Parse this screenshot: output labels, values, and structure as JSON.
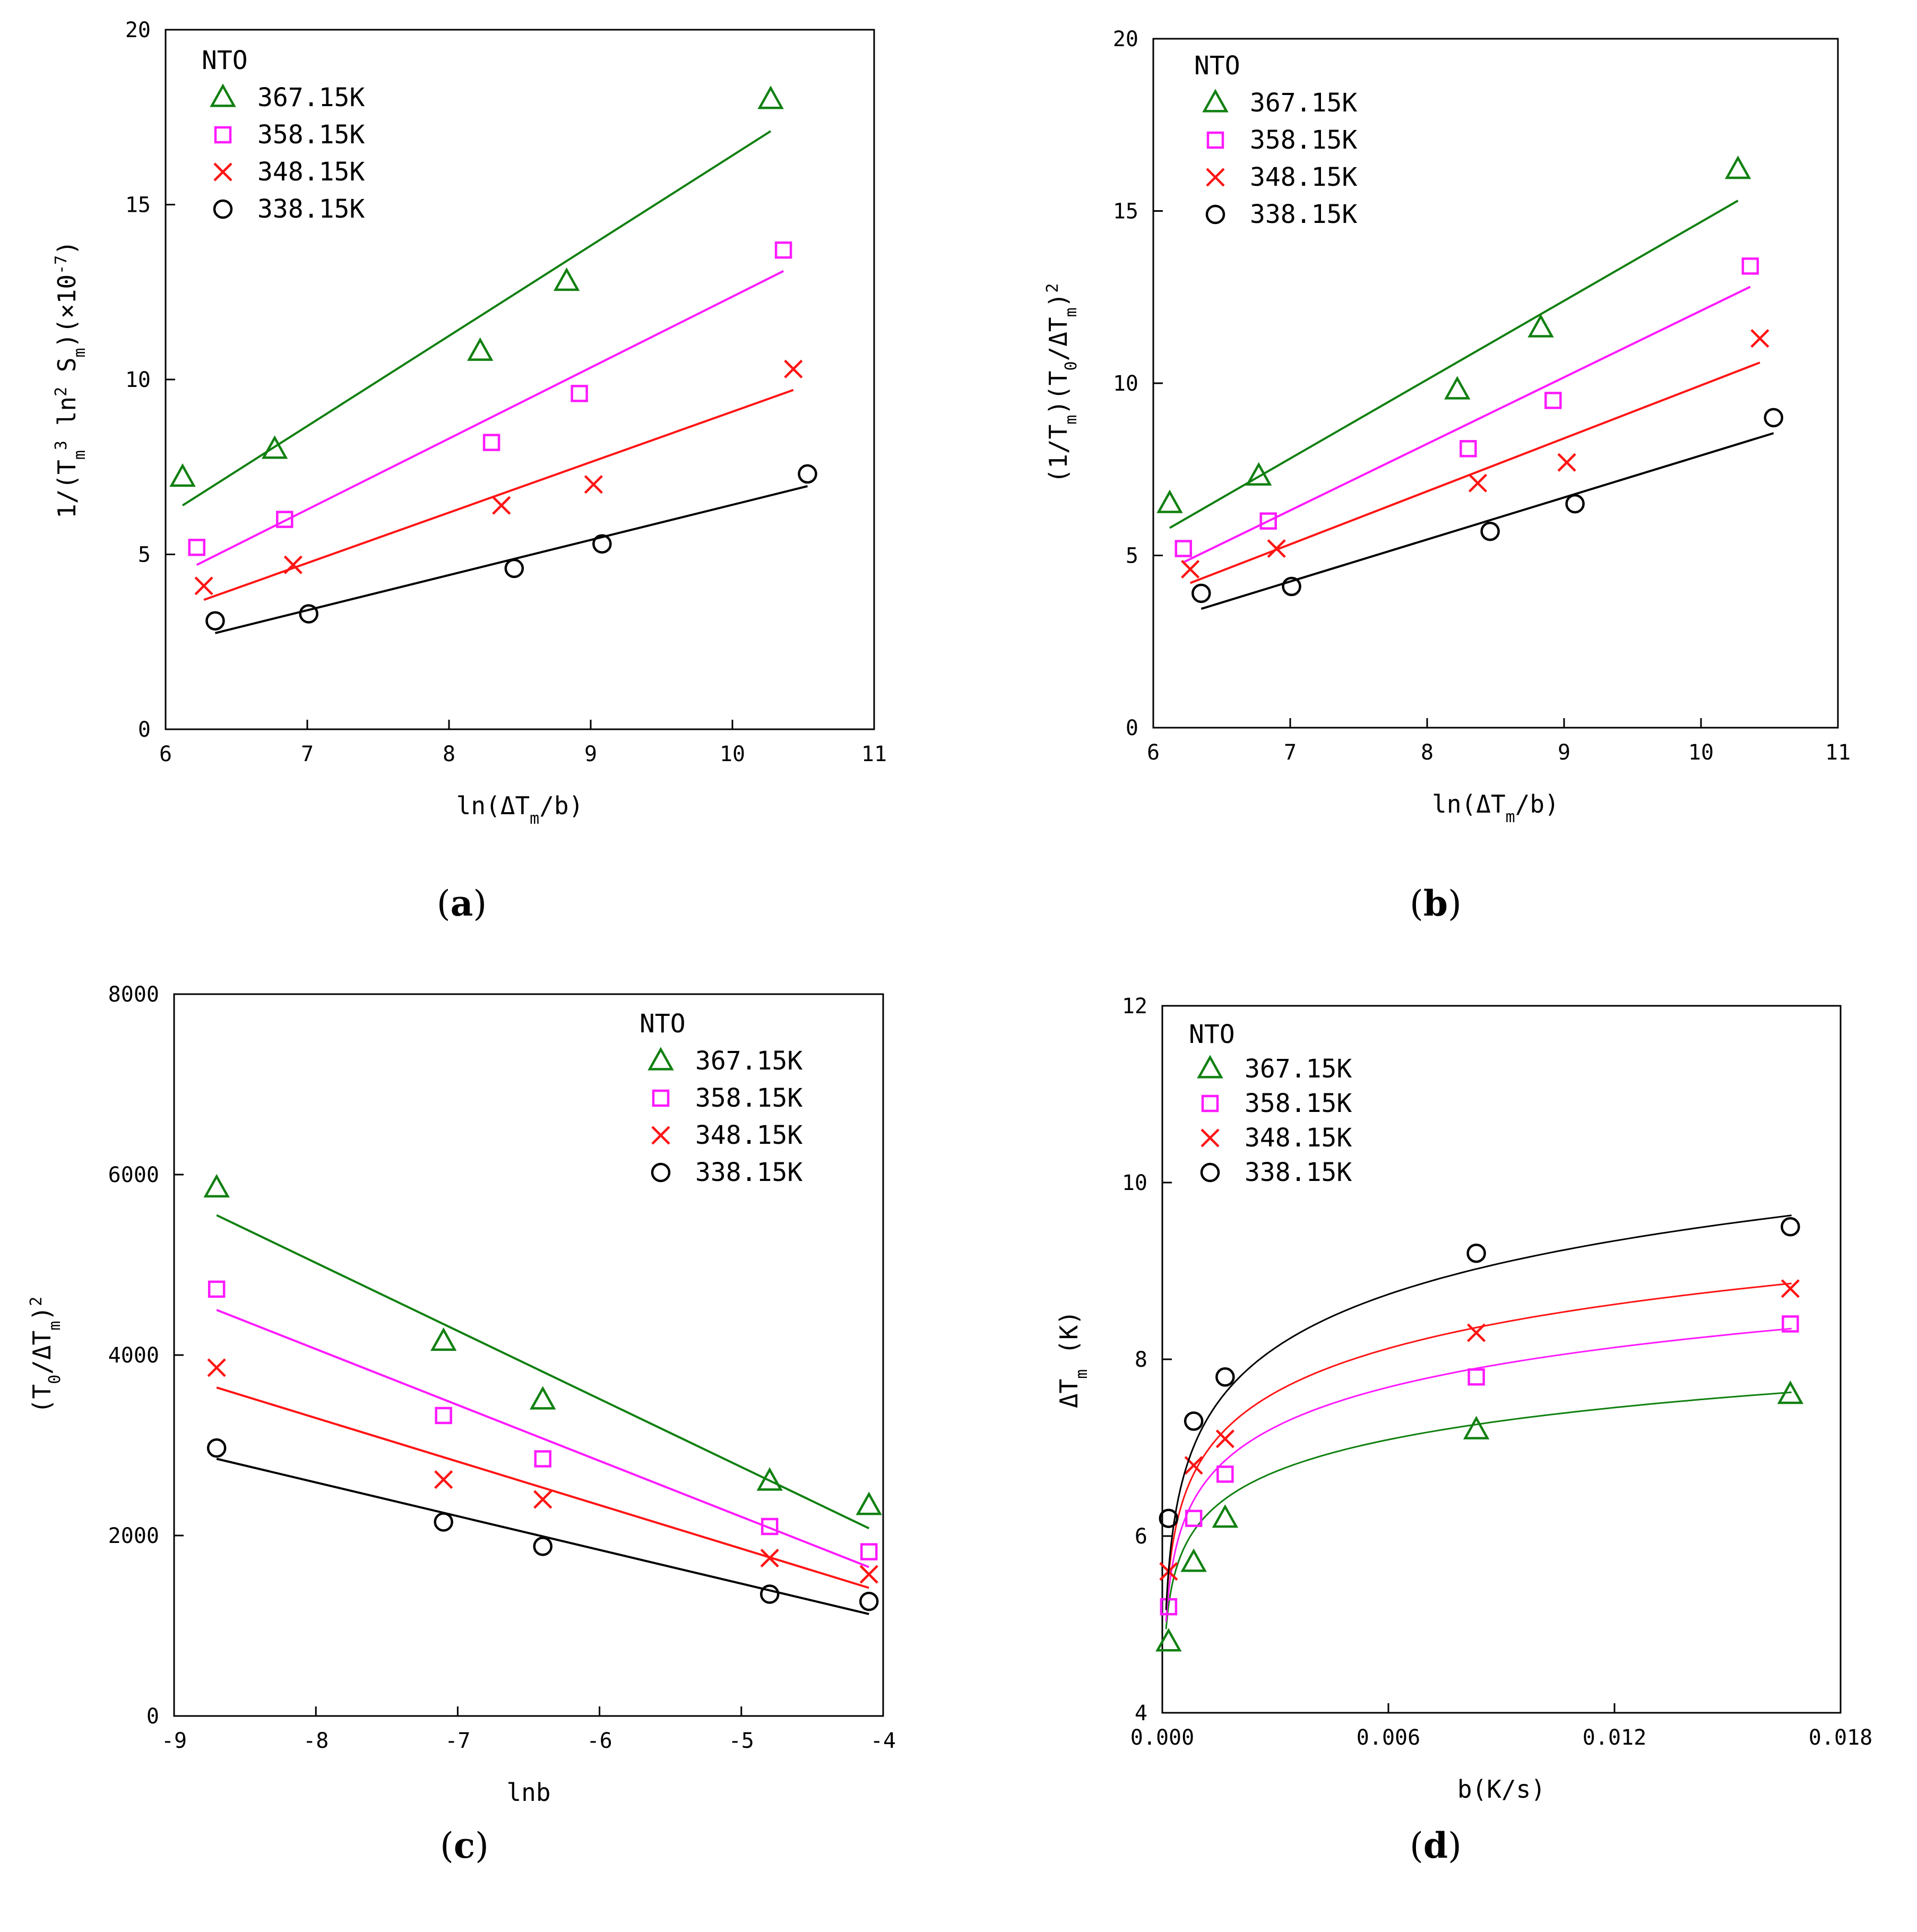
{
  "colors": {
    "367": "#118011",
    "358": "#ff1aff",
    "348": "#ff1414",
    "338": "#000000"
  },
  "chart_data": [
    {
      "id": "a",
      "type": "scatter",
      "caption": "a",
      "xlabel": "ln(ΔT_m/b)",
      "ylabel": "1/(T_m^3 ln^2 S_m)(×10^-7)",
      "xlim": [
        6,
        11
      ],
      "ylim": [
        0,
        20
      ],
      "xticks": [
        6,
        7,
        8,
        9,
        10,
        11
      ],
      "yticks": [
        0,
        5,
        10,
        15,
        20
      ],
      "xticklabels": [
        "6",
        "7",
        "8",
        "9",
        "10",
        "11"
      ],
      "yticklabels": [
        "0",
        "5",
        "10",
        "15",
        "20"
      ],
      "legend_title": "NTO",
      "legend_pos": "top-left",
      "series": [
        {
          "name": "367.15K",
          "marker": "triangle",
          "color_key": "367",
          "x": [
            6.12,
            6.77,
            8.22,
            8.83,
            10.27
          ],
          "y": [
            7.2,
            8.0,
            10.8,
            12.8,
            18.0
          ],
          "fit": {
            "type": "linear",
            "x": [
              6.12,
              10.27
            ],
            "y": [
              6.4,
              17.1
            ]
          }
        },
        {
          "name": "358.15K",
          "marker": "square",
          "color_key": "358",
          "x": [
            6.22,
            6.84,
            8.3,
            8.92,
            10.36
          ],
          "y": [
            5.2,
            6.0,
            8.2,
            9.6,
            13.7
          ],
          "fit": {
            "type": "linear",
            "x": [
              6.22,
              10.36
            ],
            "y": [
              4.7,
              13.1
            ]
          }
        },
        {
          "name": "348.15K",
          "marker": "cross",
          "color_key": "348",
          "x": [
            6.27,
            6.9,
            8.37,
            9.02,
            10.43
          ],
          "y": [
            4.1,
            4.7,
            6.4,
            7.0,
            10.3
          ],
          "fit": {
            "type": "linear",
            "x": [
              6.27,
              10.43
            ],
            "y": [
              3.7,
              9.7
            ]
          }
        },
        {
          "name": "338.15K",
          "marker": "circle",
          "color_key": "338",
          "x": [
            6.35,
            7.01,
            8.46,
            9.08,
            10.53
          ],
          "y": [
            3.1,
            3.3,
            4.6,
            5.3,
            7.3
          ],
          "fit": {
            "type": "linear",
            "x": [
              6.35,
              10.53
            ],
            "y": [
              2.75,
              6.95
            ]
          }
        }
      ]
    },
    {
      "id": "b",
      "type": "scatter",
      "caption": "b",
      "xlabel": "ln(ΔT_m/b)",
      "ylabel": "(1/T_m)(T_0/ΔT_m)^2",
      "xlim": [
        6,
        11
      ],
      "ylim": [
        0,
        20
      ],
      "xticks": [
        6,
        7,
        8,
        9,
        10,
        11
      ],
      "yticks": [
        0,
        5,
        10,
        15,
        20
      ],
      "xticklabels": [
        "6",
        "7",
        "8",
        "9",
        "10",
        "11"
      ],
      "yticklabels": [
        "0",
        "5",
        "10",
        "15",
        "20"
      ],
      "legend_title": "NTO",
      "legend_pos": "top-left",
      "series": [
        {
          "name": "367.15K",
          "marker": "triangle",
          "color_key": "367",
          "x": [
            6.12,
            6.77,
            8.22,
            8.83,
            10.27
          ],
          "y": [
            6.5,
            7.3,
            9.8,
            11.6,
            16.2
          ],
          "fit": {
            "type": "linear",
            "x": [
              6.12,
              10.27
            ],
            "y": [
              5.8,
              15.3
            ]
          }
        },
        {
          "name": "358.15K",
          "marker": "square",
          "color_key": "358",
          "x": [
            6.22,
            6.84,
            8.3,
            8.92,
            10.36
          ],
          "y": [
            5.2,
            6.0,
            8.1,
            9.5,
            13.4
          ],
          "fit": {
            "type": "linear",
            "x": [
              6.22,
              10.36
            ],
            "y": [
              4.8,
              12.8
            ]
          }
        },
        {
          "name": "348.15K",
          "marker": "cross",
          "color_key": "348",
          "x": [
            6.27,
            6.9,
            8.37,
            9.02,
            10.43
          ],
          "y": [
            4.6,
            5.2,
            7.1,
            7.7,
            11.3
          ],
          "fit": {
            "type": "linear",
            "x": [
              6.27,
              10.43
            ],
            "y": [
              4.2,
              10.6
            ]
          }
        },
        {
          "name": "338.15K",
          "marker": "circle",
          "color_key": "338",
          "x": [
            6.35,
            7.01,
            8.46,
            9.08,
            10.53
          ],
          "y": [
            3.9,
            4.1,
            5.7,
            6.5,
            9.0
          ],
          "fit": {
            "type": "linear",
            "x": [
              6.35,
              10.53
            ],
            "y": [
              3.45,
              8.55
            ]
          }
        }
      ]
    },
    {
      "id": "c",
      "type": "scatter",
      "caption": "c",
      "xlabel": "lnb",
      "ylabel": "(T_0/ΔT_m)^2",
      "xlim": [
        -9,
        -4
      ],
      "ylim": [
        0,
        8000
      ],
      "xticks": [
        -9,
        -8,
        -7,
        -6,
        -5,
        -4
      ],
      "yticks": [
        0,
        2000,
        4000,
        6000,
        8000
      ],
      "xticklabels": [
        "-9",
        "-8",
        "-7",
        "-6",
        "-5",
        "-4"
      ],
      "yticklabels": [
        "0",
        "2000",
        "4000",
        "6000",
        "8000"
      ],
      "legend_title": "NTO",
      "legend_pos": "top-right",
      "series": [
        {
          "name": "367.15K",
          "marker": "triangle",
          "color_key": "367",
          "x": [
            -8.7,
            -7.1,
            -6.4,
            -4.8,
            -4.1
          ],
          "y": [
            5850,
            4150,
            3500,
            2600,
            2330
          ],
          "fit": {
            "type": "linear",
            "x": [
              -8.7,
              -4.1
            ],
            "y": [
              5550,
              2080
            ]
          }
        },
        {
          "name": "358.15K",
          "marker": "square",
          "color_key": "358",
          "x": [
            -8.7,
            -7.1,
            -6.4,
            -4.8,
            -4.1
          ],
          "y": [
            4730,
            3330,
            2850,
            2100,
            1820
          ],
          "fit": {
            "type": "linear",
            "x": [
              -8.7,
              -4.1
            ],
            "y": [
              4500,
              1650
            ]
          }
        },
        {
          "name": "348.15K",
          "marker": "cross",
          "color_key": "348",
          "x": [
            -8.7,
            -7.1,
            -6.4,
            -4.8,
            -4.1
          ],
          "y": [
            3860,
            2620,
            2400,
            1750,
            1570
          ],
          "fit": {
            "type": "linear",
            "x": [
              -8.7,
              -4.1
            ],
            "y": [
              3640,
              1420
            ]
          }
        },
        {
          "name": "338.15K",
          "marker": "circle",
          "color_key": "338",
          "x": [
            -8.7,
            -7.1,
            -6.4,
            -4.8,
            -4.1
          ],
          "y": [
            2970,
            2150,
            1880,
            1350,
            1270
          ],
          "fit": {
            "type": "linear",
            "x": [
              -8.7,
              -4.1
            ],
            "y": [
              2850,
              1130
            ]
          }
        }
      ]
    },
    {
      "id": "d",
      "type": "scatter",
      "caption": "d",
      "xlabel": "b(K/s)",
      "ylabel": "ΔT_m (K)",
      "xlim": [
        0,
        0.018
      ],
      "ylim": [
        4,
        12
      ],
      "xticks": [
        0,
        0.006,
        0.012,
        0.018
      ],
      "yticks": [
        4,
        6,
        8,
        10,
        12
      ],
      "xticklabels": [
        "0.000",
        "0.006",
        "0.012",
        "0.018"
      ],
      "yticklabels": [
        "4",
        "6",
        "8",
        "10",
        "12"
      ],
      "legend_title": "NTO",
      "legend_pos": "top-left",
      "series": [
        {
          "name": "367.15K",
          "marker": "triangle",
          "color_key": "367",
          "x": [
            0.000167,
            0.000833,
            0.001667,
            0.008333,
            0.016667
          ],
          "y": [
            4.8,
            5.7,
            6.2,
            7.2,
            7.6
          ],
          "fit": {
            "type": "log",
            "a": 9.77,
            "b": 0.5237,
            "xrange": [
              0.0001,
              0.0167
            ]
          }
        },
        {
          "name": "358.15K",
          "marker": "square",
          "color_key": "358",
          "x": [
            0.000167,
            0.000833,
            0.001667,
            0.008333,
            0.016667
          ],
          "y": [
            5.2,
            6.2,
            6.7,
            7.8,
            8.4
          ],
          "fit": {
            "type": "log",
            "a": 11.0,
            "b": 0.6481,
            "xrange": [
              0.0001,
              0.0167
            ]
          }
        },
        {
          "name": "348.15K",
          "marker": "cross",
          "color_key": "348",
          "x": [
            0.000167,
            0.000833,
            0.001667,
            0.008333,
            0.016667
          ],
          "y": [
            5.6,
            6.8,
            7.1,
            8.3,
            8.8
          ],
          "fit": {
            "type": "log",
            "a": 11.8,
            "b": 0.7187,
            "xrange": [
              0.0001,
              0.0167
            ]
          }
        },
        {
          "name": "338.15K",
          "marker": "circle",
          "color_key": "338",
          "x": [
            0.000167,
            0.000833,
            0.001667,
            0.008333,
            0.016667
          ],
          "y": [
            6.2,
            7.3,
            7.8,
            9.2,
            9.5
          ],
          "fit": {
            "type": "log",
            "a": 13.2,
            "b": 0.8727,
            "xrange": [
              0.0001,
              0.0167
            ]
          }
        }
      ]
    }
  ]
}
